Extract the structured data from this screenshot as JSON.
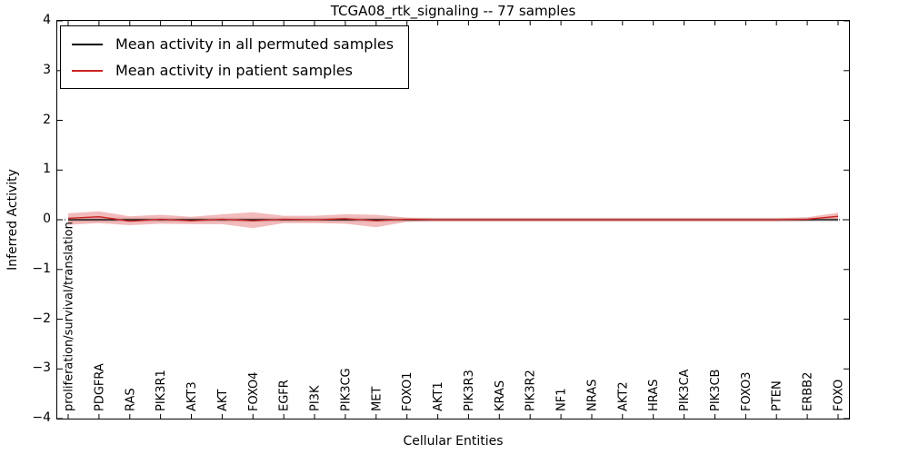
{
  "title": "TCGA08_rtk_signaling -- 77 samples",
  "chart_data": {
    "type": "line",
    "title": "TCGA08_rtk_signaling -- 77 samples",
    "xlabel": "Cellular Entities",
    "ylabel": "Inferred Activity",
    "ylim": [
      -4,
      4
    ],
    "ytick_step": 1,
    "grid": false,
    "legend_position": "upper-left",
    "zero_line_dotted": true,
    "categories": [
      "proliferation/survival/translation",
      "PDGFRA",
      "RAS",
      "PIK3R1",
      "AKT3",
      "AKT",
      "FOXO4",
      "EGFR",
      "PI3K",
      "PIK3CG",
      "MET",
      "FOXO1",
      "AKT1",
      "PIK3R3",
      "KRAS",
      "PIK3R2",
      "NF1",
      "NRAS",
      "AKT2",
      "HRAS",
      "PIK3CA",
      "PIK3CB",
      "FOXO3",
      "PTEN",
      "ERBB2",
      "FOXO"
    ],
    "series": [
      {
        "name": "Mean activity in all permuted samples",
        "color": "#000000",
        "values": [
          0,
          0,
          0,
          0,
          0,
          0,
          0,
          0,
          0,
          0,
          0,
          0,
          0,
          0,
          0,
          0,
          0,
          0,
          0,
          0,
          0,
          0,
          0,
          0,
          0,
          0
        ],
        "band": {
          "fill": "rgba(110,110,110,0.25)",
          "upper": [
            0.04,
            0.04,
            0.04,
            0.04,
            0.04,
            0.04,
            0.04,
            0.04,
            0.04,
            0.04,
            0.04,
            0.04,
            0.04,
            0.04,
            0.04,
            0.04,
            0.04,
            0.04,
            0.04,
            0.04,
            0.04,
            0.04,
            0.04,
            0.04,
            0.04,
            0.04
          ],
          "lower": [
            -0.04,
            -0.04,
            -0.04,
            -0.04,
            -0.04,
            -0.04,
            -0.04,
            -0.04,
            -0.04,
            -0.04,
            -0.04,
            -0.04,
            -0.04,
            -0.04,
            -0.04,
            -0.04,
            -0.04,
            -0.04,
            -0.04,
            -0.04,
            -0.04,
            -0.04,
            -0.04,
            -0.04,
            -0.04,
            -0.04
          ]
        }
      },
      {
        "name": "Mean activity in patient samples",
        "color": "#cc2222",
        "values": [
          0.03,
          0.06,
          -0.03,
          0.01,
          -0.02,
          0.01,
          -0.02,
          0.01,
          0,
          0.02,
          -0.02,
          0.01,
          0,
          0,
          0,
          0,
          0,
          0,
          0,
          0,
          0,
          0,
          0,
          0,
          0.01,
          0.07
        ],
        "band": {
          "fill": "rgba(220,60,60,0.35)",
          "upper": [
            0.13,
            0.17,
            0.07,
            0.1,
            0.06,
            0.11,
            0.15,
            0.08,
            0.08,
            0.11,
            0.1,
            0.04,
            0.03,
            0.03,
            0.03,
            0.03,
            0.03,
            0.03,
            0.03,
            0.03,
            0.03,
            0.03,
            0.03,
            0.03,
            0.05,
            0.14
          ],
          "lower": [
            -0.1,
            -0.07,
            -0.11,
            -0.08,
            -0.09,
            -0.09,
            -0.17,
            -0.07,
            -0.07,
            -0.08,
            -0.15,
            -0.04,
            -0.03,
            -0.03,
            -0.03,
            -0.03,
            -0.03,
            -0.03,
            -0.03,
            -0.03,
            -0.03,
            -0.03,
            -0.03,
            -0.03,
            -0.02,
            0.01
          ]
        }
      }
    ]
  },
  "legend": {
    "items": [
      {
        "label": "Mean activity in all permuted samples",
        "color": "#000000"
      },
      {
        "label": "Mean activity in patient samples",
        "color": "#cc2222"
      }
    ]
  }
}
